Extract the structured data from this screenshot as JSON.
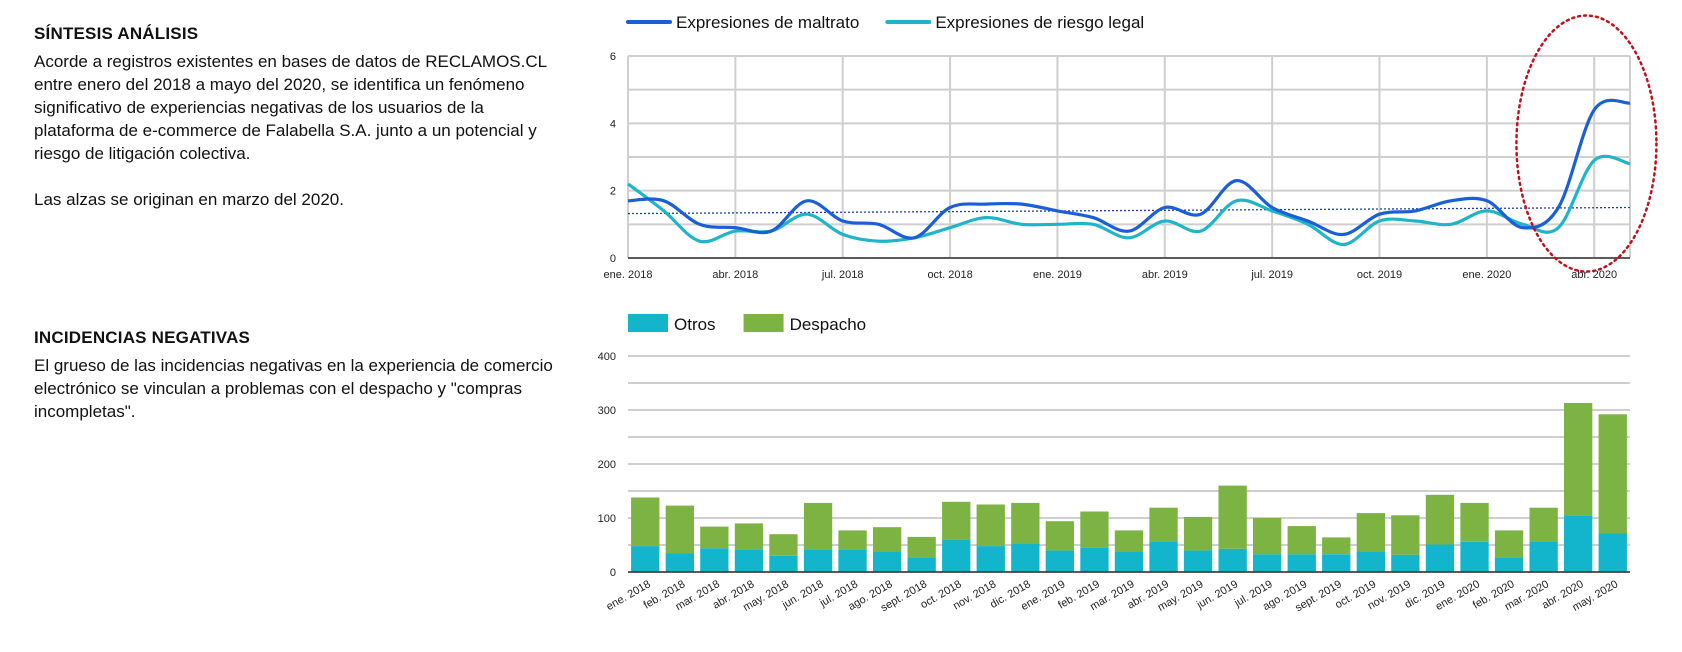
{
  "sections": [
    {
      "heading": "SÍNTESIS ANÁLISIS",
      "paragraphs": [
        "Acorde a registros existentes en bases de datos de RECLAMOS.CL entre enero del 2018 a mayo del 2020, se identifica un fenómeno significativo de experiencias negativas de los usuarios de la plataforma de e-commerce de Falabella S.A. junto a un potencial y riesgo de litigación colectiva.",
        "Las alzas se originan en marzo del 2020."
      ]
    },
    {
      "heading": "INCIDENCIAS NEGATIVAS",
      "paragraphs": [
        "El grueso de las incidencias negativas en la experiencia de comercio electrónico se vinculan a problemas con el despacho y \"compras incompletas\"."
      ]
    }
  ],
  "chart_data": [
    {
      "type": "line",
      "x_tick_labels": [
        "ene. 2018",
        "abr. 2018",
        "jul. 2018",
        "oct. 2018",
        "ene. 2019",
        "abr. 2019",
        "jul. 2019",
        "oct. 2019",
        "ene. 2020",
        "abr. 2020"
      ],
      "ylim": [
        0,
        6
      ],
      "y_ticks": [
        0,
        2,
        4,
        6
      ],
      "grid": true,
      "legend_position": "top-left",
      "reference_line": 1.4,
      "highlight": "dotted red ellipse around mar.–may. 2020",
      "series": [
        {
          "name": "Expresiones de maltrato",
          "color": "#1a5fd6",
          "values": [
            1.7,
            1.7,
            1.0,
            0.9,
            0.8,
            1.7,
            1.1,
            1.0,
            0.6,
            1.5,
            1.6,
            1.6,
            1.4,
            1.2,
            0.8,
            1.5,
            1.3,
            2.3,
            1.5,
            1.1,
            0.7,
            1.3,
            1.4,
            1.7,
            1.7,
            0.9,
            1.5,
            4.4,
            4.6
          ]
        },
        {
          "name": "Expresiones de riesgo legal",
          "color": "#1fb5c9",
          "values": [
            2.2,
            1.4,
            0.5,
            0.8,
            0.8,
            1.3,
            0.7,
            0.5,
            0.6,
            0.9,
            1.2,
            1.0,
            1.0,
            1.0,
            0.6,
            1.1,
            0.8,
            1.7,
            1.4,
            1.0,
            0.4,
            1.1,
            1.1,
            1.0,
            1.4,
            1.0,
            0.9,
            2.9,
            2.8
          ]
        }
      ]
    },
    {
      "type": "bar",
      "stacked": true,
      "categories": [
        "ene. 2018",
        "feb. 2018",
        "mar. 2018",
        "abr. 2018",
        "may. 2018",
        "jun. 2018",
        "jul. 2018",
        "ago. 2018",
        "sept. 2018",
        "oct. 2018",
        "nov. 2018",
        "dic. 2018",
        "ene. 2019",
        "feb. 2019",
        "mar. 2019",
        "abr. 2019",
        "may. 2019",
        "jun. 2019",
        "jul. 2019",
        "ago. 2019",
        "sept. 2019",
        "oct. 2019",
        "nov. 2019",
        "dic. 2019",
        "ene. 2020",
        "feb. 2020",
        "mar. 2020",
        "abr. 2020",
        "may. 2020"
      ],
      "ylim": [
        0,
        400
      ],
      "y_ticks": [
        0,
        100,
        200,
        300,
        400
      ],
      "grid": true,
      "legend_position": "top-left",
      "series": [
        {
          "name": "Otros",
          "color": "#12b5cb",
          "values": [
            48,
            35,
            44,
            42,
            30,
            42,
            42,
            37,
            27,
            60,
            48,
            53,
            40,
            46,
            37,
            57,
            40,
            43,
            33,
            33,
            33,
            37,
            32,
            51,
            56,
            27,
            57,
            105,
            72
          ]
        },
        {
          "name": "Despacho",
          "color": "#7cb342",
          "values": [
            90,
            88,
            40,
            48,
            40,
            86,
            35,
            46,
            38,
            70,
            77,
            75,
            54,
            66,
            40,
            62,
            62,
            117,
            67,
            52,
            31,
            72,
            73,
            92,
            72,
            50,
            62,
            208,
            220
          ]
        }
      ]
    }
  ]
}
